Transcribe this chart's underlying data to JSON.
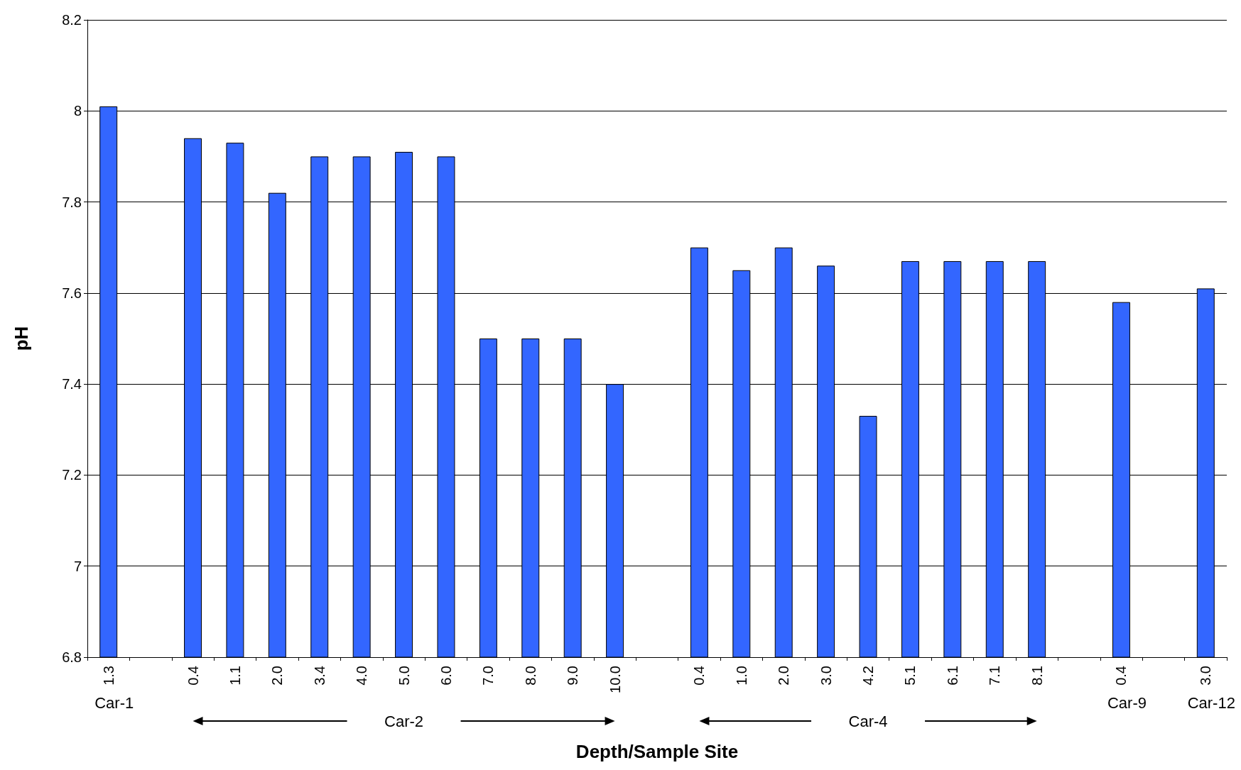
{
  "chart_data": {
    "type": "bar",
    "xlabel": "Depth/Sample Site",
    "ylabel": "pH",
    "categories": [
      "1.3",
      null,
      "0.4",
      "1.1",
      "2.0",
      "3.4",
      "4.0",
      "5.0",
      "6.0",
      "7.0",
      "8.0",
      "9.0",
      "10.0",
      null,
      "0.4",
      "1.0",
      "2.0",
      "3.0",
      "4.2",
      "5.1",
      "6.1",
      "7.1",
      "8.1",
      null,
      "0.4",
      null,
      "3.0"
    ],
    "series": [
      {
        "color": "#3366ff",
        "values": [
          8.01,
          null,
          7.94,
          7.93,
          7.82,
          7.9,
          7.9,
          7.91,
          7.9,
          7.5,
          7.5,
          7.5,
          7.4,
          null,
          7.7,
          7.65,
          7.7,
          7.66,
          7.33,
          7.67,
          7.67,
          7.67,
          7.67,
          null,
          7.58,
          null,
          7.61
        ]
      }
    ],
    "annotations": [
      "Car-1",
      "Car-2",
      "Car-4",
      "Car-9",
      "Car-12"
    ],
    "ylim": [
      6.8,
      8.2
    ],
    "yticks": [
      6.8,
      7,
      7.2,
      7.4,
      7.6,
      7.8,
      8,
      8.2
    ],
    "grid": "y"
  }
}
